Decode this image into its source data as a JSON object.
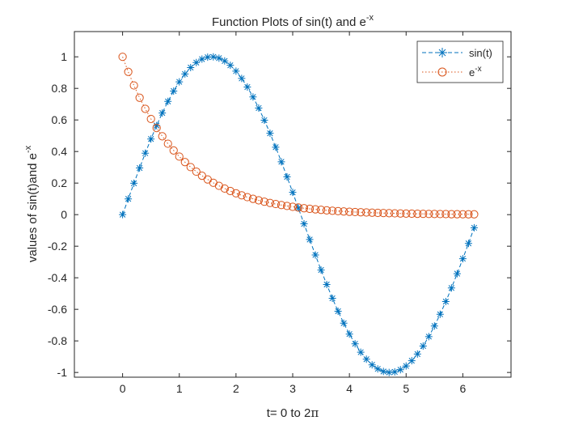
{
  "chart_data": {
    "type": "line",
    "title": {
      "main": "Function Plots of sin(t) and e",
      "sup": "-x"
    },
    "xlabel": {
      "main": "t= 0 to 2",
      "symbol": "π"
    },
    "ylabel": {
      "main": "values of sin(t)and e",
      "sup": "-x"
    },
    "xlim": [
      -0.85,
      6.85
    ],
    "ylim": [
      -1.03,
      1.16
    ],
    "x_ticks": [
      0,
      1,
      2,
      3,
      4,
      5,
      6
    ],
    "x_tick_labels": [
      "0",
      "1",
      "2",
      "3",
      "4",
      "5",
      "6"
    ],
    "y_ticks": [
      1,
      0.8,
      0.6,
      0.4,
      0.2,
      0,
      -0.2,
      -0.4,
      -0.6,
      -0.8,
      -1
    ],
    "y_tick_labels": [
      "1",
      "0.8",
      "0.6",
      "0.4",
      "0.2",
      "0",
      "-0.2",
      "-0.4",
      "-0.6",
      "-0.8",
      "-1"
    ],
    "grid": false,
    "legend": {
      "placement": "top-right"
    },
    "x": [
      0,
      0.1,
      0.2,
      0.3,
      0.4,
      0.5,
      0.6,
      0.7,
      0.8,
      0.9,
      1.0,
      1.1,
      1.2,
      1.3,
      1.4,
      1.5,
      1.6,
      1.7,
      1.8,
      1.9,
      2.0,
      2.1,
      2.2,
      2.3,
      2.4,
      2.5,
      2.6,
      2.7,
      2.8,
      2.9,
      3.0,
      3.1,
      3.2,
      3.3,
      3.4,
      3.5,
      3.6,
      3.7,
      3.8,
      3.9,
      4.0,
      4.1,
      4.2,
      4.3,
      4.4,
      4.5,
      4.6,
      4.7,
      4.8,
      4.9,
      5.0,
      5.1,
      5.2,
      5.3,
      5.4,
      5.5,
      5.6,
      5.7,
      5.8,
      5.9,
      6.0,
      6.1,
      6.2
    ],
    "series": [
      {
        "name": "sin(t)",
        "legend_label": {
          "main": "sin(t)",
          "sup": ""
        },
        "color": "#0072BD",
        "line_style": "dashed",
        "marker": "asterisk",
        "values": [
          0,
          0.0998,
          0.1987,
          0.2955,
          0.3894,
          0.4794,
          0.5646,
          0.6442,
          0.7174,
          0.7833,
          0.8415,
          0.8912,
          0.932,
          0.9636,
          0.9854,
          0.9975,
          0.9996,
          0.9917,
          0.9738,
          0.9463,
          0.9093,
          0.8632,
          0.8085,
          0.7457,
          0.6755,
          0.5985,
          0.5155,
          0.4274,
          0.335,
          0.2392,
          0.1411,
          0.0416,
          -0.0584,
          -0.1577,
          -0.2555,
          -0.3508,
          -0.4425,
          -0.5298,
          -0.6119,
          -0.6878,
          -0.7568,
          -0.8183,
          -0.8716,
          -0.9162,
          -0.9516,
          -0.9775,
          -0.9937,
          -0.9999,
          -0.9962,
          -0.9825,
          -0.9589,
          -0.9258,
          -0.8835,
          -0.8323,
          -0.7728,
          -0.7055,
          -0.6313,
          -0.5507,
          -0.4646,
          -0.3739,
          -0.2794,
          -0.1822,
          -0.0831
        ]
      },
      {
        "name": "e^-x",
        "legend_label": {
          "main": "e",
          "sup": "-x"
        },
        "color": "#D95319",
        "line_style": "dotted",
        "marker": "circle",
        "values": [
          1,
          0.9048,
          0.8187,
          0.7408,
          0.6703,
          0.6065,
          0.5488,
          0.4966,
          0.4493,
          0.4066,
          0.3679,
          0.3329,
          0.3012,
          0.2725,
          0.2466,
          0.2231,
          0.2019,
          0.1827,
          0.1653,
          0.1496,
          0.1353,
          0.1225,
          0.1108,
          0.1003,
          0.0907,
          0.0821,
          0.0743,
          0.0672,
          0.0608,
          0.055,
          0.0498,
          0.045,
          0.0408,
          0.0369,
          0.0334,
          0.0302,
          0.0273,
          0.0247,
          0.0224,
          0.0202,
          0.0183,
          0.0166,
          0.015,
          0.0136,
          0.0123,
          0.0111,
          0.0101,
          0.0091,
          0.0082,
          0.0074,
          0.0067,
          0.0061,
          0.0055,
          0.005,
          0.0045,
          0.0041,
          0.0037,
          0.0033,
          0.003,
          0.0027,
          0.0025,
          0.0022,
          0.002
        ]
      }
    ]
  }
}
